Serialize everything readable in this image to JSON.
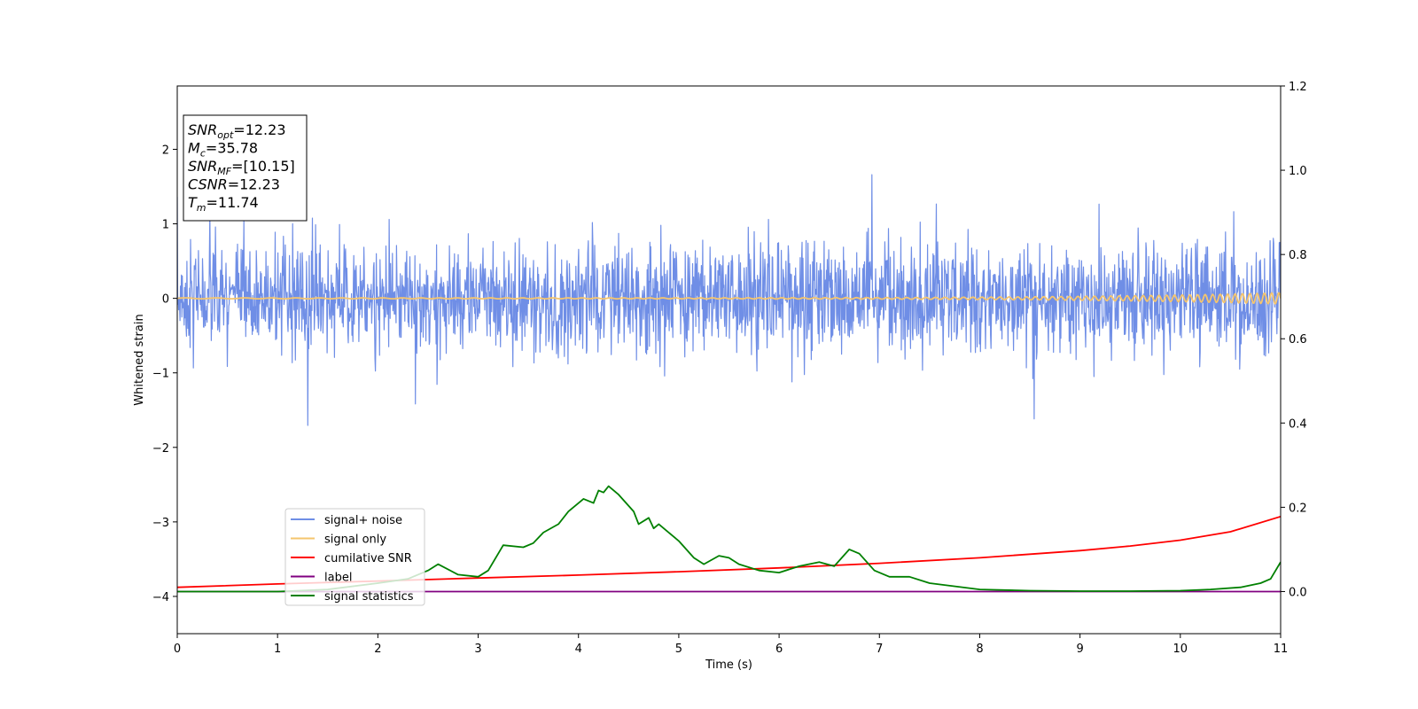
{
  "chart_data": {
    "type": "line",
    "xlabel": "Time (s)",
    "ylabel": "Whitened strain",
    "xlim": [
      0,
      11
    ],
    "ylim": [
      -4.5,
      2.85
    ],
    "y2lim": [
      -0.1,
      1.2
    ],
    "x_ticks": [
      0,
      1,
      2,
      3,
      4,
      5,
      6,
      7,
      8,
      9,
      10,
      11
    ],
    "y_ticks": [
      -4,
      -3,
      -2,
      -1,
      0,
      1,
      2
    ],
    "y_tick_labels": [
      "−4",
      "−3",
      "−2",
      "−1",
      "0",
      "1",
      "2"
    ],
    "y2_ticks": [
      0.0,
      0.2,
      0.4,
      0.6,
      0.8,
      1.0,
      1.2
    ],
    "y2_tick_labels": [
      "0.0",
      "0.2",
      "0.4",
      "0.6",
      "0.8",
      "1.0",
      "1.2"
    ],
    "legend_position": "lower-left",
    "info_box": {
      "position": "top-left",
      "lines": [
        {
          "sym": "SNR",
          "sub": "opt",
          "val": "=12.23"
        },
        {
          "sym": "M",
          "sub": "c",
          "val": "=35.78"
        },
        {
          "sym": "SNR",
          "sub": "MF",
          "val": "=[10.15]"
        },
        {
          "sym": "CSNR",
          "sub": "",
          "val": "=12.23"
        },
        {
          "sym": "T",
          "sub": "m",
          "val": "=11.74"
        }
      ]
    },
    "series": [
      {
        "name": "signal+ noise",
        "color": "#6f8ee6",
        "axis": "left",
        "noise_amplitude": 0.35,
        "range": [
          -1.78,
          1.66
        ]
      },
      {
        "name": "signal only",
        "color": "#f5c56d",
        "axis": "left",
        "chirp_amplitude_end": 0.07
      },
      {
        "name": "cumilative SNR",
        "color": "#ff0000",
        "axis": "right",
        "x": [
          0,
          1,
          2,
          3,
          4,
          5,
          6,
          7,
          8,
          9,
          9.5,
          10,
          10.5,
          11
        ],
        "y": [
          0.01,
          0.018,
          0.025,
          0.032,
          0.039,
          0.047,
          0.056,
          0.067,
          0.08,
          0.097,
          0.108,
          0.122,
          0.142,
          0.178
        ]
      },
      {
        "name": "label",
        "color": "#800080",
        "axis": "right",
        "x": [
          0,
          11
        ],
        "y": [
          0,
          0
        ]
      },
      {
        "name": "signal statistics",
        "color": "#008000",
        "axis": "right",
        "x": [
          0,
          1,
          1.5,
          2,
          2.3,
          2.5,
          2.6,
          2.8,
          3,
          3.1,
          3.25,
          3.45,
          3.55,
          3.65,
          3.8,
          3.9,
          4.05,
          4.15,
          4.2,
          4.25,
          4.3,
          4.4,
          4.55,
          4.6,
          4.7,
          4.75,
          4.8,
          4.9,
          5.0,
          5.15,
          5.25,
          5.4,
          5.5,
          5.6,
          5.8,
          6.0,
          6.2,
          6.4,
          6.55,
          6.7,
          6.8,
          6.95,
          7.1,
          7.3,
          7.5,
          8.0,
          8.5,
          9.0,
          9.5,
          10.0,
          10.3,
          10.6,
          10.8,
          10.9,
          11.0
        ],
        "y": [
          0.0,
          0.0,
          0.005,
          0.02,
          0.03,
          0.05,
          0.065,
          0.04,
          0.035,
          0.05,
          0.11,
          0.105,
          0.115,
          0.14,
          0.16,
          0.19,
          0.22,
          0.21,
          0.24,
          0.235,
          0.25,
          0.23,
          0.19,
          0.16,
          0.175,
          0.15,
          0.16,
          0.14,
          0.12,
          0.08,
          0.065,
          0.085,
          0.08,
          0.065,
          0.05,
          0.045,
          0.06,
          0.07,
          0.06,
          0.1,
          0.09,
          0.05,
          0.035,
          0.035,
          0.02,
          0.005,
          0.002,
          0.001,
          0.001,
          0.002,
          0.005,
          0.01,
          0.02,
          0.03,
          0.07
        ]
      }
    ]
  }
}
